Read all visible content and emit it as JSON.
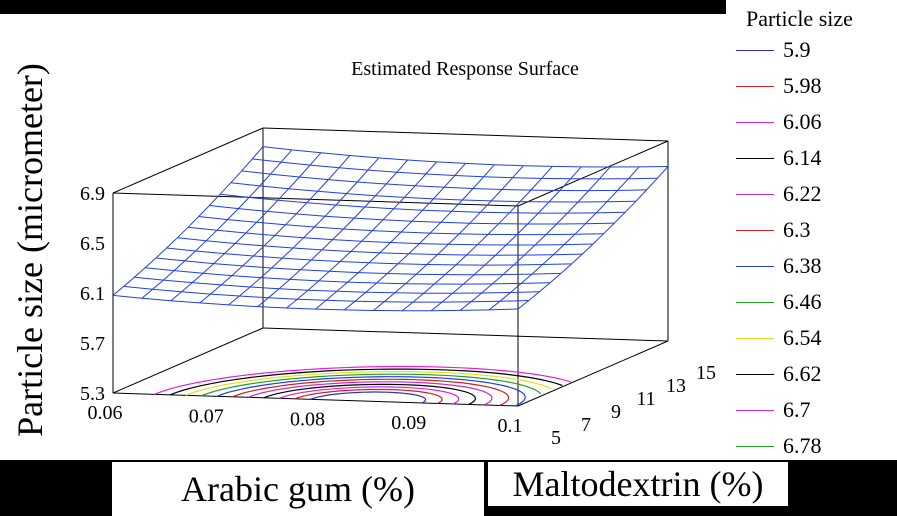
{
  "chart_data": {
    "type": "surface",
    "title": "Estimated Response Surface",
    "xlabel": "Arabic gum (%)",
    "ylabel": "Maltodextrin (%)",
    "zlabel": "Particle size (micrometer)",
    "x_ticks": [
      "0.06",
      "0.07",
      "0.08",
      "0.09",
      "0.1"
    ],
    "y_ticks": [
      "5",
      "7",
      "9",
      "11",
      "13",
      "15"
    ],
    "z_ticks": [
      "5.3",
      "5.7",
      "6.1",
      "6.5",
      "6.9"
    ],
    "xlim": [
      0.06,
      0.1
    ],
    "ylim": [
      5,
      15
    ],
    "zlim": [
      5.3,
      6.9
    ],
    "surface_grid": {
      "x": [
        0.06,
        0.1
      ],
      "y": [
        5,
        15
      ],
      "z_corners": {
        "x0y0": 6.05,
        "x1y0": 6.1,
        "x0y1": 6.72,
        "x1y1": 6.72
      },
      "curvature_min_at_x": 0.085
    },
    "legend": {
      "title": "Particle size",
      "placement": "right",
      "items": [
        {
          "label": "5.9",
          "color": "#3030c0"
        },
        {
          "label": "5.98",
          "color": "#d02020"
        },
        {
          "label": "6.06",
          "color": "#e020e0"
        },
        {
          "label": "6.14",
          "color": "#000000"
        },
        {
          "label": "6.22",
          "color": "#c030c0"
        },
        {
          "label": "6.3",
          "color": "#d02020"
        },
        {
          "label": "6.38",
          "color": "#2040e0"
        },
        {
          "label": "6.46",
          "color": "#20a020"
        },
        {
          "label": "6.54",
          "color": "#e0e020"
        },
        {
          "label": "6.62",
          "color": "#000000"
        },
        {
          "label": "6.7",
          "color": "#e020e0"
        },
        {
          "label": "6.78",
          "color": "#20a020"
        }
      ]
    }
  }
}
